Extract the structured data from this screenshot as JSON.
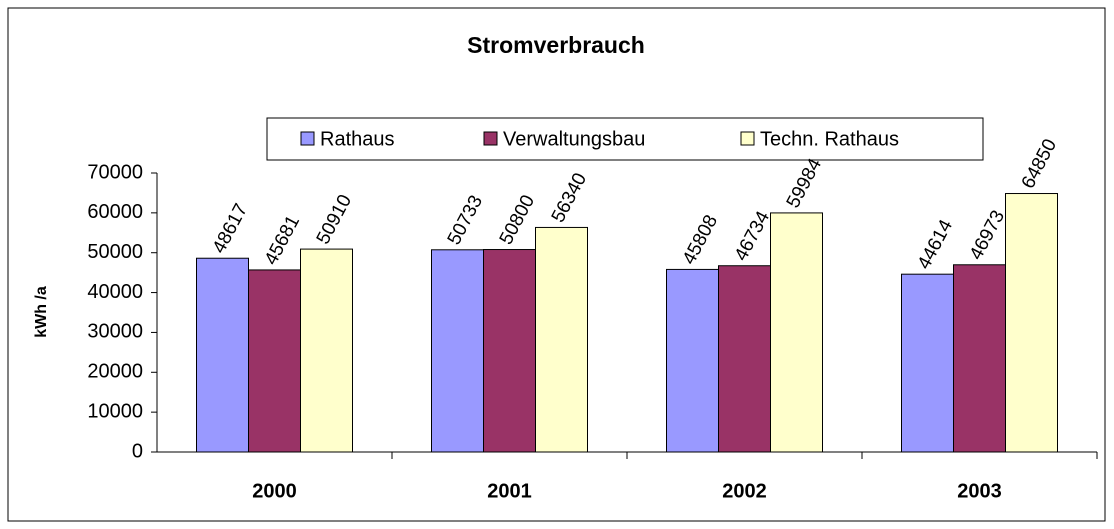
{
  "chart_data": {
    "type": "bar",
    "title": "Stromverbrauch",
    "y_label": "kWh /a",
    "categories": [
      "2000",
      "2001",
      "2002",
      "2003"
    ],
    "series": [
      {
        "name": "Rathaus",
        "color": "#9999ff",
        "values": [
          48617,
          50733,
          45808,
          44614
        ]
      },
      {
        "name": "Verwaltungsbau",
        "color": "#993366",
        "values": [
          45681,
          50800,
          46734,
          46973
        ]
      },
      {
        "name": "Techn. Rathaus",
        "color": "#ffffcc",
        "values": [
          50910,
          56340,
          59984,
          64850
        ]
      }
    ],
    "ylim": [
      0,
      70000
    ],
    "yticks": [
      0,
      10000,
      20000,
      30000,
      40000,
      50000,
      60000,
      70000
    ],
    "legend": "top",
    "grid": false
  }
}
